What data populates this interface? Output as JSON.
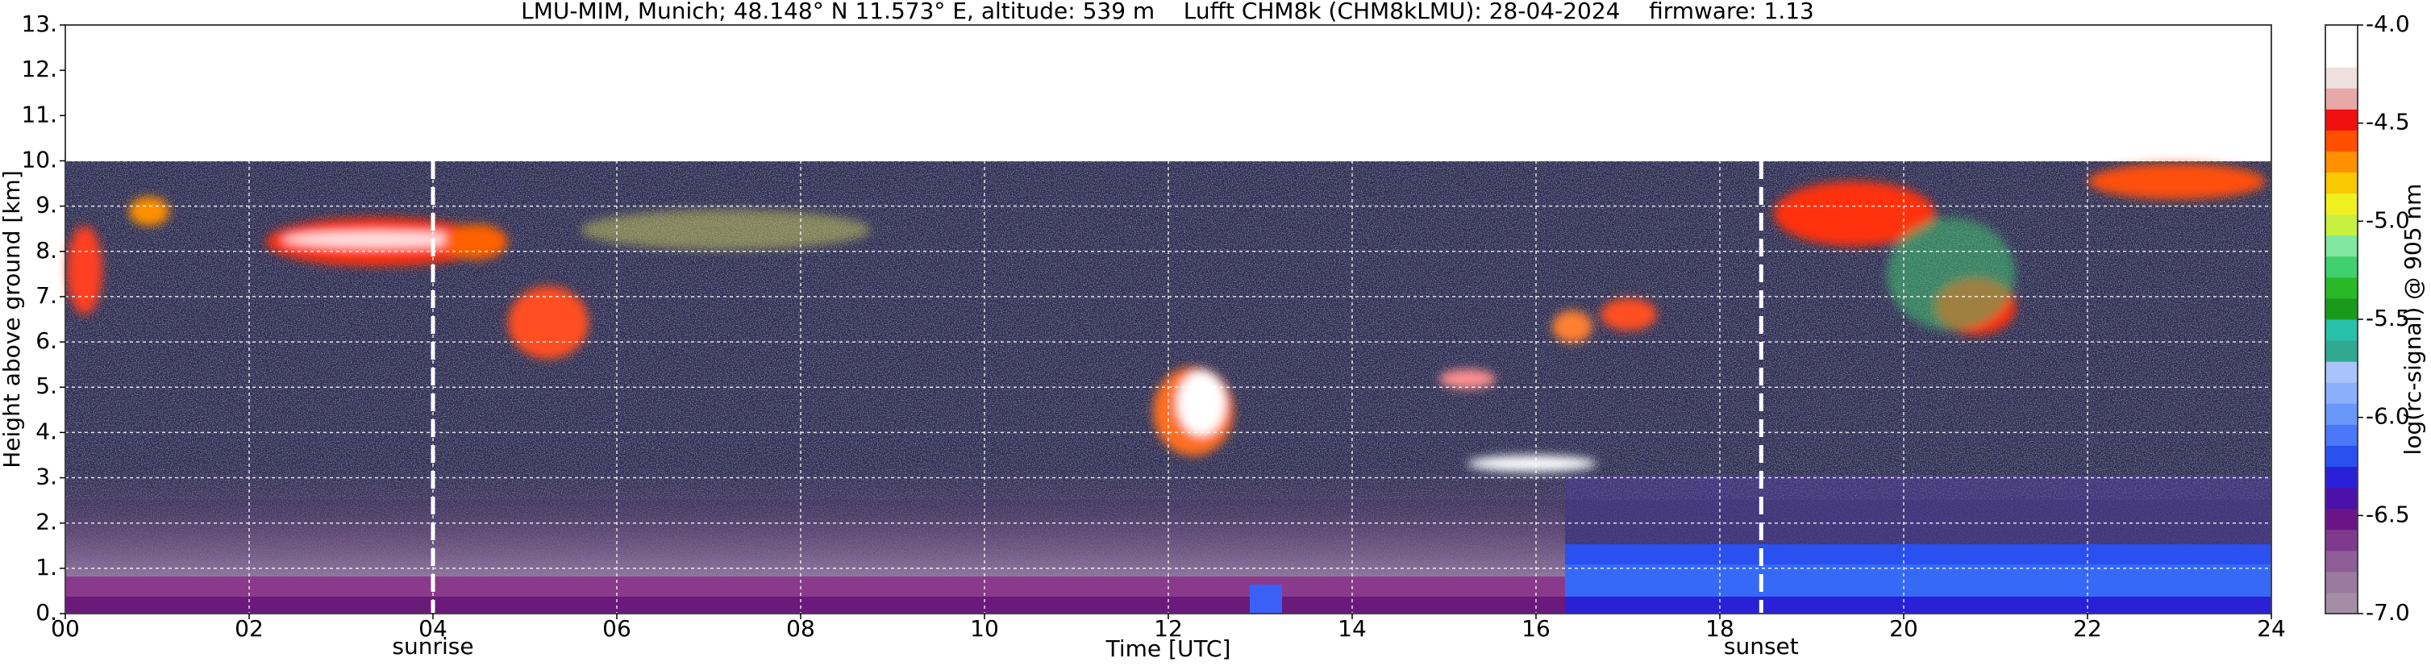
{
  "chart_data": {
    "type": "heatmap",
    "title": "LMU-MIM, Munich; 48.148° N 11.573° E, altitude: 539 m    Lufft CHM8k (CHM8kLMU): 28-04-2024    firmware: 1.13",
    "xlabel": "Time [UTC]",
    "ylabel": "Height above ground [km]",
    "xlim": [
      0,
      24
    ],
    "xticks": [
      {
        "value": 0,
        "label": "00"
      },
      {
        "value": 2,
        "label": "02"
      },
      {
        "value": 4,
        "label": "04"
      },
      {
        "value": 6,
        "label": "06"
      },
      {
        "value": 8,
        "label": "08"
      },
      {
        "value": 10,
        "label": "10"
      },
      {
        "value": 12,
        "label": "12"
      },
      {
        "value": 14,
        "label": "14"
      },
      {
        "value": 16,
        "label": "16"
      },
      {
        "value": 18,
        "label": "18"
      },
      {
        "value": 20,
        "label": "20"
      },
      {
        "value": 22,
        "label": "22"
      },
      {
        "value": 24,
        "label": "24"
      }
    ],
    "ylim": [
      0,
      13
    ],
    "yticks": [
      {
        "value": 0,
        "label": "0."
      },
      {
        "value": 1,
        "label": "1."
      },
      {
        "value": 2,
        "label": "2."
      },
      {
        "value": 3,
        "label": "3."
      },
      {
        "value": 4,
        "label": "4."
      },
      {
        "value": 5,
        "label": "5."
      },
      {
        "value": 6,
        "label": "6."
      },
      {
        "value": 7,
        "label": "7."
      },
      {
        "value": 8,
        "label": "8."
      },
      {
        "value": 9,
        "label": "9."
      },
      {
        "value": 10,
        "label": "10."
      },
      {
        "value": 11,
        "label": "11."
      },
      {
        "value": 12,
        "label": "12."
      },
      {
        "value": 13,
        "label": "13."
      }
    ],
    "grid": true,
    "annotations": [
      {
        "text": "sunrise",
        "x": 4.0
      },
      {
        "text": "sunset",
        "x": 18.45
      }
    ],
    "colorbar": {
      "label": "log(rc-signal) @ 905 nm",
      "lim": [
        -7,
        -4
      ],
      "ticks": [
        {
          "value": -7,
          "label": "-7.0"
        },
        {
          "value": -6.5,
          "label": "-6.5"
        },
        {
          "value": -6,
          "label": "-6.0"
        },
        {
          "value": -5.5,
          "label": "-5.5"
        },
        {
          "value": -5,
          "label": "-5.0"
        },
        {
          "value": -4.5,
          "label": "-4.5"
        },
        {
          "value": -4,
          "label": "-4.0"
        }
      ],
      "colors": [
        "#a58ea5",
        "#9a7a9e",
        "#8e5e96",
        "#7e3a8c",
        "#6a1488",
        "#4a10a8",
        "#2a20d8",
        "#2a50f0",
        "#4a78f8",
        "#6a98fa",
        "#8ab0fb",
        "#a8c4fa",
        "#30a890",
        "#28c0a8",
        "#1a9a1a",
        "#28b828",
        "#40d070",
        "#80e8a0",
        "#c8f040",
        "#f0f020",
        "#f8c800",
        "#ff9000",
        "#ff5000",
        "#f01010",
        "#e8a8a8",
        "#ece0e0",
        "#ffffff",
        "#ffffff"
      ]
    }
  }
}
